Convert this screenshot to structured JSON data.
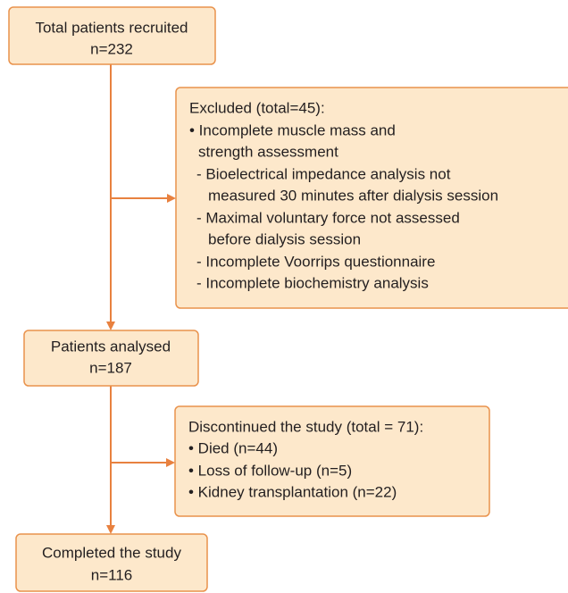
{
  "nodes": [
    {
      "lines": [
        "Total patients recruited",
        "n=232"
      ]
    },
    {
      "lines": [
        "Excluded (total=45):",
        "• Incomplete muscle mass and",
        "strength assessment",
        "- Bioelectrical impedance analysis not",
        "measured 30 minutes after dialysis session",
        "- Maximal voluntary force not assessed",
        "before dialysis session",
        "- Incomplete Voorrips questionnaire",
        "- Incomplete biochemistry analysis"
      ]
    },
    {
      "lines": [
        "Patients analysed",
        "n=187"
      ]
    },
    {
      "lines": [
        "Discontinued the study (total = 71):",
        "• Died (n=44)",
        "• Loss of follow-up (n=5)",
        "• Kidney transplantation (n=22)"
      ]
    },
    {
      "lines": [
        "Completed the study",
        "n=116"
      ]
    }
  ]
}
